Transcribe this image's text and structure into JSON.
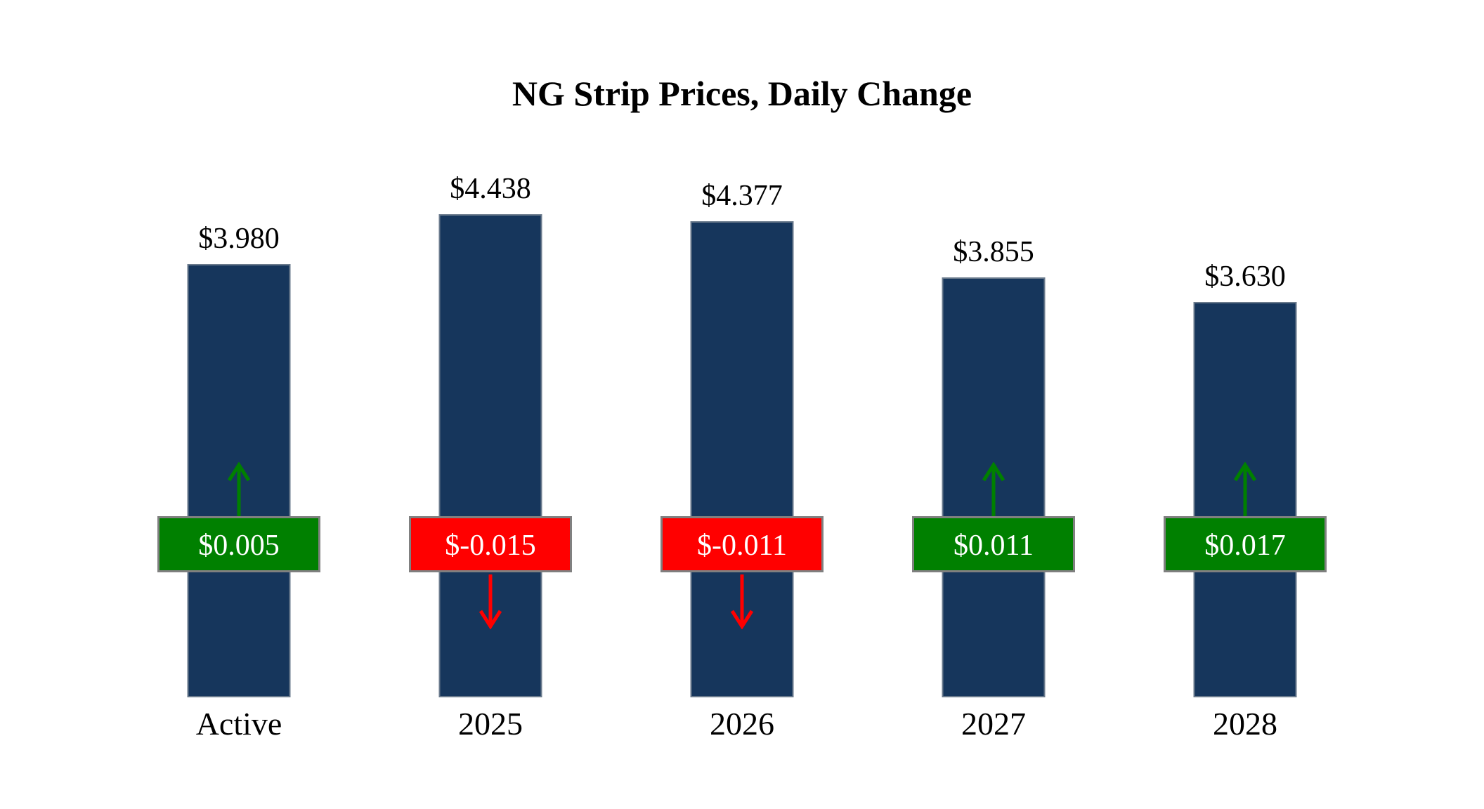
{
  "title": "NG Strip Prices, Daily Change",
  "chart_data": {
    "type": "bar",
    "title": "NG Strip Prices, Daily Change",
    "categories": [
      "Active",
      "2025",
      "2026",
      "2027",
      "2028"
    ],
    "values": [
      3.98,
      4.438,
      4.377,
      3.855,
      3.63
    ],
    "value_labels": [
      "$3.980",
      "$4.438",
      "$4.377",
      "$3.855",
      "$3.630"
    ],
    "changes": [
      0.005,
      -0.015,
      -0.011,
      0.011,
      0.017
    ],
    "change_labels": [
      "$0.005",
      "$-0.015",
      "$-0.011",
      "$0.011",
      "$0.017"
    ],
    "xlabel": "",
    "ylabel": "",
    "ylim": [
      0,
      4.438
    ],
    "grid": false,
    "legend": "none",
    "colors": {
      "bar": "#16365C",
      "positive": "#008000",
      "negative": "#FF0000",
      "badge_border": "#808080",
      "text": "#000000"
    }
  }
}
